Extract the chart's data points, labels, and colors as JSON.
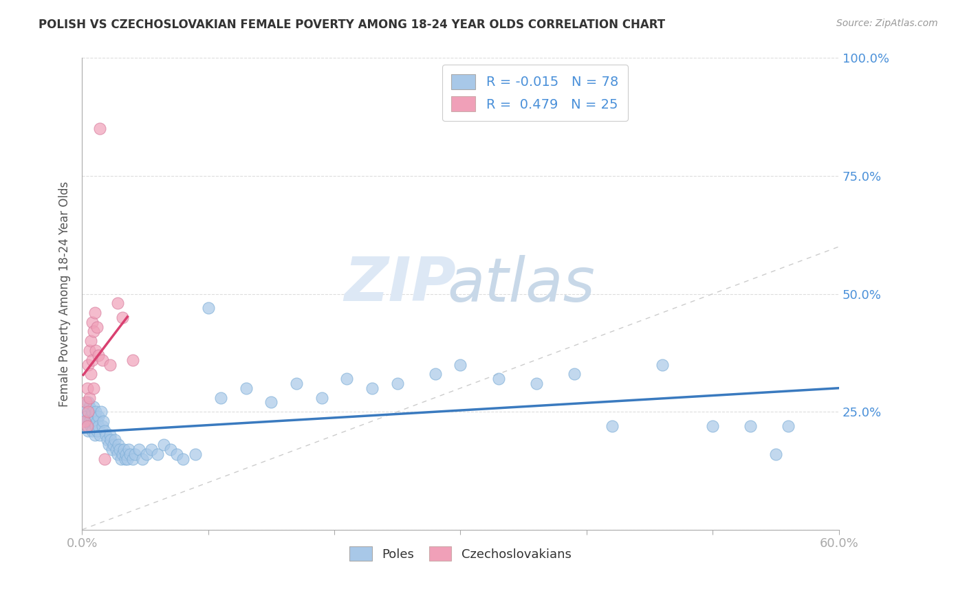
{
  "title": "POLISH VS CZECHOSLOVAKIAN FEMALE POVERTY AMONG 18-24 YEAR OLDS CORRELATION CHART",
  "source": "Source: ZipAtlas.com",
  "ylabel": "Female Poverty Among 18-24 Year Olds",
  "xlim": [
    0.0,
    0.6
  ],
  "ylim": [
    0.0,
    1.0
  ],
  "poles_R": -0.015,
  "poles_N": 78,
  "czech_R": 0.479,
  "czech_N": 25,
  "poles_color": "#a8c8e8",
  "czech_color": "#f0a0b8",
  "poles_line_color": "#3a7abf",
  "czech_line_color": "#d94070",
  "ref_line_color": "#cccccc",
  "watermark_zip": "ZIP",
  "watermark_atlas": "atlas",
  "watermark_color": "#dde8f5",
  "poles_x": [
    0.002,
    0.003,
    0.004,
    0.005,
    0.005,
    0.006,
    0.006,
    0.007,
    0.007,
    0.008,
    0.008,
    0.009,
    0.009,
    0.01,
    0.01,
    0.011,
    0.011,
    0.012,
    0.012,
    0.013,
    0.013,
    0.014,
    0.015,
    0.016,
    0.017,
    0.018,
    0.019,
    0.02,
    0.021,
    0.022,
    0.023,
    0.024,
    0.025,
    0.026,
    0.027,
    0.028,
    0.029,
    0.03,
    0.031,
    0.032,
    0.033,
    0.034,
    0.035,
    0.036,
    0.037,
    0.038,
    0.04,
    0.042,
    0.045,
    0.048,
    0.051,
    0.055,
    0.06,
    0.065,
    0.07,
    0.075,
    0.08,
    0.09,
    0.1,
    0.11,
    0.13,
    0.15,
    0.17,
    0.19,
    0.21,
    0.23,
    0.25,
    0.28,
    0.3,
    0.33,
    0.36,
    0.39,
    0.42,
    0.46,
    0.5,
    0.53,
    0.55,
    0.56
  ],
  "poles_y": [
    0.25,
    0.24,
    0.23,
    0.27,
    0.21,
    0.26,
    0.23,
    0.24,
    0.22,
    0.25,
    0.21,
    0.26,
    0.23,
    0.24,
    0.2,
    0.22,
    0.25,
    0.23,
    0.21,
    0.24,
    0.22,
    0.2,
    0.25,
    0.22,
    0.23,
    0.21,
    0.2,
    0.19,
    0.18,
    0.2,
    0.19,
    0.17,
    0.18,
    0.19,
    0.17,
    0.16,
    0.18,
    0.17,
    0.15,
    0.16,
    0.17,
    0.15,
    0.16,
    0.15,
    0.17,
    0.16,
    0.15,
    0.16,
    0.17,
    0.15,
    0.16,
    0.17,
    0.16,
    0.18,
    0.17,
    0.16,
    0.15,
    0.16,
    0.47,
    0.28,
    0.3,
    0.27,
    0.31,
    0.28,
    0.32,
    0.3,
    0.31,
    0.33,
    0.35,
    0.32,
    0.31,
    0.33,
    0.22,
    0.35,
    0.22,
    0.22,
    0.16,
    0.22
  ],
  "czech_x": [
    0.002,
    0.003,
    0.004,
    0.004,
    0.005,
    0.005,
    0.006,
    0.006,
    0.007,
    0.007,
    0.008,
    0.008,
    0.009,
    0.009,
    0.01,
    0.011,
    0.012,
    0.013,
    0.014,
    0.016,
    0.018,
    0.022,
    0.028,
    0.032,
    0.04
  ],
  "czech_y": [
    0.23,
    0.27,
    0.3,
    0.22,
    0.35,
    0.25,
    0.38,
    0.28,
    0.4,
    0.33,
    0.44,
    0.36,
    0.42,
    0.3,
    0.46,
    0.38,
    0.43,
    0.37,
    0.85,
    0.36,
    0.15,
    0.35,
    0.48,
    0.45,
    0.36
  ],
  "czech_line_x_end": 0.036,
  "czech_line_y_start": 0.22,
  "czech_line_y_end": 0.52
}
